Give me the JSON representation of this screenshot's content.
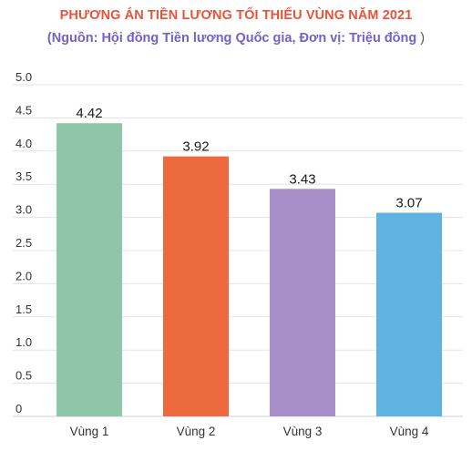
{
  "chart_data": {
    "type": "bar",
    "title": "PHƯƠNG ÁN TIỀN LƯƠNG TỐI THIỂU VÙNG NĂM 2021",
    "subtitle": "(Nguồn: Hội đồng Tiền lương Quốc gia, Đơn vị: Triệu đồng",
    "subtitle_close": ")",
    "categories": [
      "Vùng 1",
      "Vùng 2",
      "Vùng 3",
      "Vùng 4"
    ],
    "values": [
      4.42,
      3.92,
      3.43,
      3.07
    ],
    "value_labels": [
      "4.42",
      "3.92",
      "3.43",
      "3.07"
    ],
    "colors": [
      "#8fc5a9",
      "#ed6a3e",
      "#a88fc9",
      "#5fb3e2"
    ],
    "y_ticks": [
      "0",
      "0.5",
      "1.0",
      "1.5",
      "2.0",
      "2.5",
      "3.0",
      "3.5",
      "4.0",
      "4.5",
      "5.0"
    ],
    "ylim": [
      0,
      5
    ],
    "grid": true,
    "legend": "none"
  }
}
